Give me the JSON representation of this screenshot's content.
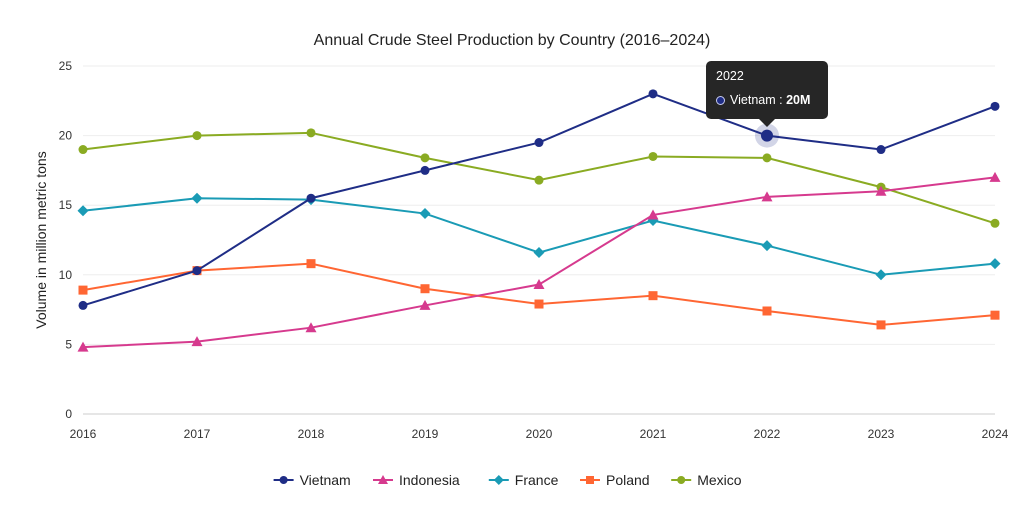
{
  "chart_data": {
    "type": "line",
    "title": "Annual Crude Steel Production by Country (2016–2024)",
    "xlabel": "",
    "ylabel": "Volume in million metric tons",
    "x": [
      "2016",
      "2017",
      "2018",
      "2019",
      "2020",
      "2021",
      "2022",
      "2023",
      "2024"
    ],
    "ylim": [
      0,
      25
    ],
    "yticks": [
      0,
      5,
      10,
      15,
      20,
      25
    ],
    "grid": true,
    "legend_position": "bottom",
    "series": [
      {
        "name": "Vietnam",
        "color": "#1f2d86",
        "marker": "circle",
        "values": [
          7.8,
          10.3,
          15.5,
          17.5,
          19.5,
          23.0,
          20.0,
          19.0,
          22.1
        ]
      },
      {
        "name": "Indonesia",
        "color": "#d63a8e",
        "marker": "triangle",
        "values": [
          4.8,
          5.2,
          6.2,
          7.8,
          9.3,
          14.3,
          15.6,
          16.0,
          17.0
        ]
      },
      {
        "name": "France",
        "color": "#1a9bb5",
        "marker": "diamond",
        "values": [
          14.6,
          15.5,
          15.4,
          14.4,
          11.6,
          13.9,
          12.1,
          10.0,
          10.8
        ]
      },
      {
        "name": "Poland",
        "color": "#ff6633",
        "marker": "square",
        "values": [
          8.9,
          10.3,
          10.8,
          9.0,
          7.9,
          8.5,
          7.4,
          6.4,
          7.1
        ]
      },
      {
        "name": "Mexico",
        "color": "#8aab22",
        "marker": "circle",
        "values": [
          19.0,
          20.0,
          20.2,
          18.4,
          16.8,
          18.5,
          18.4,
          16.3,
          13.7
        ]
      }
    ]
  },
  "tooltip": {
    "year": "2022",
    "series": "Vietnam",
    "separator": " : ",
    "value": "20M"
  }
}
